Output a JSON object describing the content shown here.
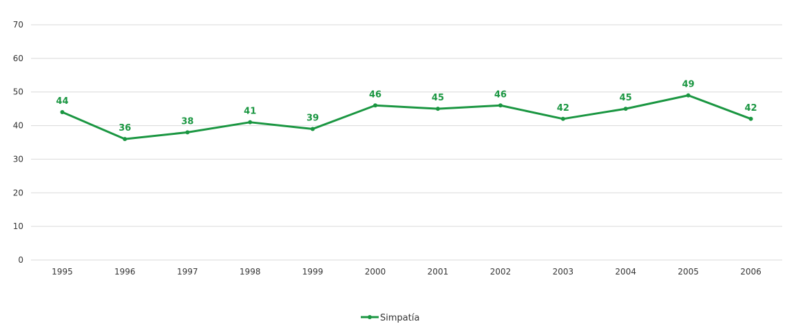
{
  "chart_data": {
    "type": "line",
    "title": "",
    "xlabel": "",
    "ylabel": "",
    "categories": [
      "1995",
      "1996",
      "1997",
      "1998",
      "1999",
      "2000",
      "2001",
      "2002",
      "2003",
      "2004",
      "2005",
      "2006"
    ],
    "series": [
      {
        "name": "Simpatía",
        "values": [
          44,
          36,
          38,
          41,
          39,
          46,
          45,
          46,
          42,
          45,
          49,
          42
        ]
      }
    ],
    "ylim": [
      0,
      70
    ],
    "yticks": [
      0,
      10,
      20,
      30,
      40,
      50,
      60,
      70
    ],
    "grid": true,
    "legend": "bottom-center",
    "data_labels": true
  },
  "colors": {
    "series": "#1a9641",
    "grid": "#d9d9d9",
    "tick_text": "#333333"
  }
}
